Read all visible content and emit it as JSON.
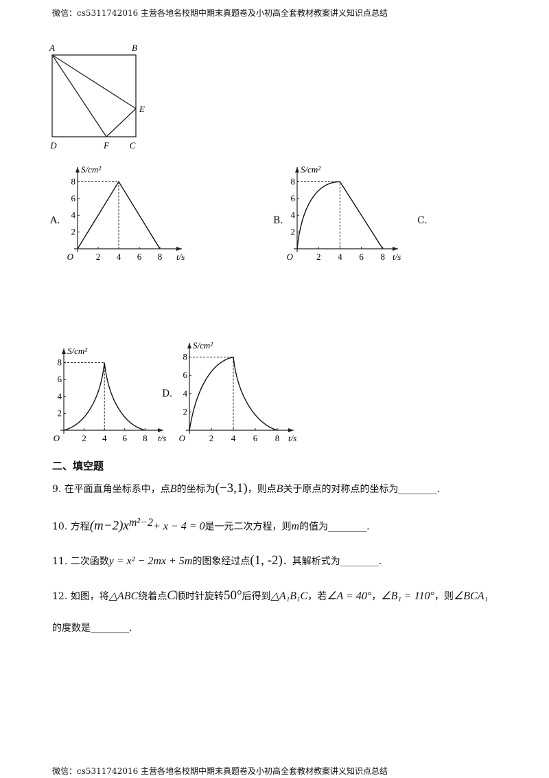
{
  "header": "微信：cs5311742016  主营各地名校期中期末真题卷及小初高全套教材教案讲义知识点总结",
  "footer": "微信：cs5311742016  主营各地名校期中期末真题卷及小初高全套教材教案讲义知识点总结",
  "figure": {
    "labels": [
      "A",
      "B",
      "E",
      "D",
      "F",
      "C"
    ]
  },
  "graphs": [
    {
      "option": "A.",
      "ylabel": "S/cm²",
      "xlabel": "t/s",
      "origin": "O",
      "yticks": [
        2,
        4,
        6,
        8
      ],
      "xticks": [
        2,
        4,
        6,
        8
      ]
    },
    {
      "option": "B.",
      "ylabel": "S/cm²",
      "xlabel": "t/s",
      "origin": "O",
      "yticks": [
        2,
        4,
        6,
        8
      ],
      "xticks": [
        2,
        4,
        6,
        8
      ]
    },
    {
      "option": "C.",
      "ylabel": "S/cm²",
      "xlabel": "t/s",
      "origin": "O",
      "yticks": [
        2,
        4,
        6,
        8
      ],
      "xticks": [
        2,
        4,
        6,
        8
      ]
    },
    {
      "option": "D.",
      "ylabel": "S/cm²",
      "xlabel": "t/s",
      "origin": "O",
      "yticks": [
        2,
        4,
        6,
        8
      ],
      "xticks": [
        2,
        4,
        6,
        8
      ]
    }
  ],
  "section_title": "二、填空题",
  "questions": [
    [
      "9. 在平面直角坐标系中，点",
      "B",
      "的坐标为",
      "(−3,1)",
      "，则点",
      "B",
      "关于原点的对称点的坐标为________."
    ],
    [
      "10. 方程",
      "(m−2)x",
      "m²−2",
      "+ x − 4 = 0",
      "是一元二次方程，则",
      "m",
      "的值为________."
    ],
    [
      "11. 二次函数",
      "y = x² − 2mx + 5m",
      "的图象经过点",
      "(1, -2)",
      "．其解析式为________."
    ],
    [
      "12. 如图，将",
      "△ABC",
      "绕着点",
      "C",
      "顺时针旋转",
      "50°",
      "后得到",
      "△A₁B₁C",
      "，若",
      "∠A = 40°",
      "，",
      "∠B₁ = 110°",
      "，则",
      "∠BCA₁",
      "的度数是________."
    ]
  ]
}
